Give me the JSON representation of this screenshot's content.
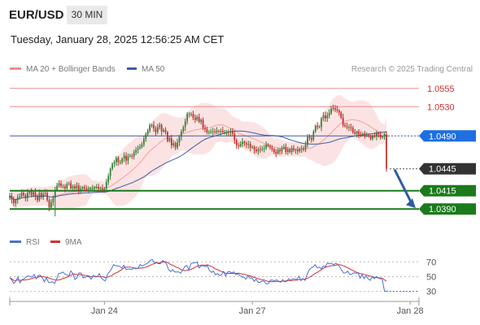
{
  "header": {
    "pair": "EUR/USD",
    "timeframe": "30 MIN",
    "datetime": "Tuesday, January 28, 2025 12:56:25 AM CET"
  },
  "legend": {
    "ma20_label": "MA 20 + Bollinger Bands",
    "ma50_label": "MA 50",
    "copyright": "Research © 2025 Trading Central",
    "rsi_label": "RSI",
    "ma9_label": "9MA"
  },
  "colors": {
    "up_candle": "#2e7d32",
    "down_candle": "#c62828",
    "bollinger_fill": "#fcdede",
    "ma20": "#f2a0a0",
    "ma50": "#3b5ea8",
    "resistance": "#f28b8b",
    "pivot": "#3b5ea8",
    "support": "#1b7a1b",
    "current_price_tag": "#333333",
    "pivot_tag": "#1e6fe0",
    "rsi_line": "#4a6fd8",
    "rsi_ma": "#d32f2f",
    "arrow": "#2d5e9e"
  },
  "chart_data": {
    "type": "candlestick",
    "instrument": "EUR/USD",
    "timeframe": "30 MIN",
    "ylim": [
      1.0378,
      1.0567
    ],
    "price_levels": [
      {
        "value": 1.0555,
        "label": "1.0555",
        "kind": "resistance"
      },
      {
        "value": 1.053,
        "label": "1.0530",
        "kind": "resistance"
      },
      {
        "value": 1.049,
        "label": "1.0490",
        "kind": "pivot"
      },
      {
        "value": 1.0445,
        "label": "1.0445",
        "kind": "current"
      },
      {
        "value": 1.0415,
        "label": "1.0415",
        "kind": "support"
      },
      {
        "value": 1.039,
        "label": "1.0390",
        "kind": "support"
      }
    ],
    "x_ticks": [
      {
        "index": 48,
        "label": "Jan 24"
      },
      {
        "index": 123,
        "label": "Jan 27"
      },
      {
        "index": 203,
        "label": "Jan 28"
      }
    ],
    "closes": [
      1.0408,
      1.0403,
      1.0398,
      1.0402,
      1.0406,
      1.0407,
      1.0412,
      1.0409,
      1.0405,
      1.0412,
      1.0414,
      1.0409,
      1.0413,
      1.0407,
      1.0402,
      1.0412,
      1.0406,
      1.0411,
      1.0412,
      1.0402,
      1.0392,
      1.0399,
      1.0405,
      1.0416,
      1.0422,
      1.0425,
      1.0421,
      1.0421,
      1.0418,
      1.0424,
      1.0425,
      1.0418,
      1.0421,
      1.0418,
      1.0422,
      1.0415,
      1.0418,
      1.042,
      1.0418,
      1.0417,
      1.0418,
      1.0418,
      1.0418,
      1.042,
      1.042,
      1.0418,
      1.0418,
      1.0416,
      1.0418,
      1.0427,
      1.0435,
      1.0445,
      1.0452,
      1.0454,
      1.046,
      1.0454,
      1.0454,
      1.0459,
      1.0463,
      1.0456,
      1.0462,
      1.0463,
      1.0462,
      1.0467,
      1.0471,
      1.0473,
      1.0475,
      1.0478,
      1.0486,
      1.0492,
      1.0497,
      1.0505,
      1.0505,
      1.05,
      1.0495,
      1.0502,
      1.0505,
      1.0496,
      1.0498,
      1.0495,
      1.0483,
      1.0487,
      1.0477,
      1.048,
      1.0474,
      1.0481,
      1.0489,
      1.0496,
      1.0502,
      1.051,
      1.052,
      1.052,
      1.052,
      1.0515,
      1.0512,
      1.0516,
      1.0509,
      1.0512,
      1.0501,
      1.0499,
      1.0495,
      1.0495,
      1.0496,
      1.0496,
      1.0495,
      1.0497,
      1.0496,
      1.0497,
      1.0495,
      1.0495,
      1.0496,
      1.0495,
      1.0496,
      1.0493,
      1.0484,
      1.0477,
      1.0476,
      1.0479,
      1.0482,
      1.048,
      1.0478,
      1.0479,
      1.0474,
      1.0475,
      1.0471,
      1.0469,
      1.0472,
      1.0471,
      1.0472,
      1.0473,
      1.0478,
      1.0476,
      1.0474,
      1.0472,
      1.0468,
      1.0466,
      1.0471,
      1.0469,
      1.0473,
      1.0475,
      1.0468,
      1.0471,
      1.0468,
      1.0473,
      1.0471,
      1.0471,
      1.0469,
      1.0472,
      1.0473,
      1.0472,
      1.0478,
      1.0489,
      1.0487,
      1.0485,
      1.0496,
      1.0504,
      1.0502,
      1.0502,
      1.0514,
      1.0518,
      1.0514,
      1.0518,
      1.0521,
      1.0527,
      1.0528,
      1.0526,
      1.0525,
      1.0522,
      1.0515,
      1.0505,
      1.0503,
      1.0502,
      1.0502,
      1.0501,
      1.0495,
      1.0493,
      1.0496,
      1.0492,
      1.0491,
      1.0493,
      1.049,
      1.0491,
      1.049,
      1.0486,
      1.049,
      1.0489,
      1.0494,
      1.0492,
      1.0488,
      1.0489,
      1.0492,
      1.0445
    ],
    "rsi": {
      "label": "RSI",
      "ma_label": "9MA",
      "levels": [
        70,
        50,
        30
      ],
      "ylim": [
        22,
        78
      ],
      "values": [
        48.6,
        45.5,
        40.8,
        43.8,
        49.7,
        41.7,
        45.8,
        47.1,
        49.6,
        51.2,
        50.2,
        49.3,
        53.0,
        47.2,
        51.6,
        52.0,
        48.5,
        43.0,
        48.4,
        42.6,
        42.0,
        43.2,
        40.9,
        46.6,
        54.3,
        54.6,
        56.3,
        53.7,
        52.4,
        51.2,
        57.7,
        54.2,
        46.3,
        48.3,
        55.1,
        54.8,
        48.3,
        49.0,
        50.5,
        49.7,
        46.5,
        51.6,
        49.8,
        49.9,
        54.2,
        48.0,
        45.5,
        44.4,
        53.3,
        56.5,
        60.5,
        66.3,
        64.8,
        64.5,
        63.9,
        61.5,
        65.5,
        59.8,
        60.1,
        60.2,
        59.9,
        61.6,
        60.5,
        61.7,
        66.4,
        64.5,
        65.8,
        67.3,
        68.9,
        72.2,
        73.2,
        69.0,
        69.4,
        67.6,
        67.6,
        71.7,
        70.1,
        67.1,
        59.4,
        56.8,
        59.3,
        56.4,
        56.4,
        56.3,
        54.8,
        59.2,
        63.7,
        65.1,
        59.3,
        67.7,
        68.4,
        68.9,
        69.9,
        61.7,
        64.4,
        65.0,
        63.4,
        65.2,
        58.7,
        55.8,
        57.6,
        52.4,
        54.3,
        51.6,
        52.5,
        57.3,
        50.6,
        56.4,
        56.8,
        54.7,
        56.6,
        52.8,
        53.8,
        51.7,
        49.5,
        49.4,
        46.5,
        51.1,
        47.7,
        48.3,
        43.5,
        46.5,
        42.3,
        42.3,
        44.1,
        43.7,
        40.1,
        40.6,
        45.3,
        45.4,
        44.5,
        45.7,
        43.7,
        42.4,
        46.1,
        43.0,
        43.7,
        47.2,
        45.1,
        47.3,
        46.6,
        46.2,
        50.7,
        44.6,
        47.5,
        45.0,
        52.8,
        59.0,
        61.7,
        63.2,
        66.1,
        61.9,
        62.8,
        60.7,
        64.6,
        63.4,
        68.3,
        67.3,
        68.1,
        66.1,
        67.8,
        67.0,
        63.6,
        58.8,
        54.8,
        55.3,
        57.5,
        52.9,
        53.5,
        55.3,
        54.4,
        55.6,
        47.9,
        52.5,
        47.3,
        50.8,
        47.0,
        45.1,
        49.9,
        47.3,
        50.2,
        48.0,
        47.4,
        45.7,
        30.8,
        30.1
      ]
    }
  }
}
